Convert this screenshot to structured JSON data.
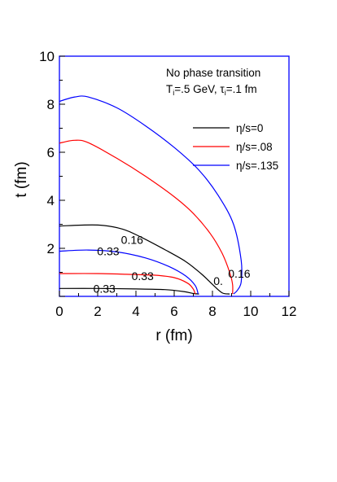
{
  "chart_data": {
    "type": "line",
    "title": "",
    "xlabel": "r (fm)",
    "ylabel": "t (fm)",
    "xlim": [
      0,
      12
    ],
    "ylim": [
      0,
      10
    ],
    "xticks": [
      "0",
      "2",
      "4",
      "6",
      "8",
      "10",
      "12"
    ],
    "yticks": [
      "2",
      "4",
      "6",
      "8",
      "10"
    ],
    "grid": false,
    "legend_placement": "right",
    "annotation": {
      "line1": "No phase transition",
      "line2": {
        "T": "T",
        "T_sub": "i",
        "T_val": "=.5 GeV, ",
        "tau": "τ",
        "tau_sub": "i",
        "tau_val": "=.1 fm"
      }
    },
    "series": [
      {
        "name": "η/s=0",
        "color": "#000000",
        "contours": [
          {
            "label": "0.16",
            "points": [
              [
                0,
                2.93
              ],
              [
                2,
                2.97
              ],
              [
                3.3,
                2.8
              ],
              [
                4.3,
                2.45
              ],
              [
                5.5,
                1.95
              ],
              [
                6.6,
                1.45
              ],
              [
                7.4,
                0.95
              ],
              [
                8.0,
                0.5
              ],
              [
                8.5,
                0.15
              ],
              [
                8.9,
                0.1
              ]
            ]
          },
          {
            "label": "0.33",
            "points": [
              [
                0,
                0.33
              ],
              [
                2,
                0.33
              ],
              [
                4,
                0.31
              ],
              [
                5.5,
                0.28
              ],
              [
                6.5,
                0.2
              ],
              [
                7.0,
                0.12
              ],
              [
                7.3,
                0.1
              ]
            ]
          }
        ]
      },
      {
        "name": "η/s=.08",
        "color": "#ff0000",
        "contours": [
          {
            "label": "",
            "points": [
              [
                0,
                6.38
              ],
              [
                0.8,
                6.5
              ],
              [
                1.5,
                6.4
              ],
              [
                3,
                5.75
              ],
              [
                4.5,
                5.0
              ],
              [
                6,
                4.15
              ],
              [
                7,
                3.45
              ],
              [
                7.9,
                2.6
              ],
              [
                8.5,
                1.8
              ],
              [
                8.9,
                1.0
              ],
              [
                9.05,
                0.5
              ],
              [
                9.05,
                0.1
              ]
            ]
          },
          {
            "label": "0.33",
            "points": [
              [
                0,
                0.95
              ],
              [
                2,
                0.95
              ],
              [
                3.5,
                0.92
              ],
              [
                5,
                0.88
              ],
              [
                6,
                0.78
              ],
              [
                6.7,
                0.55
              ],
              [
                7.0,
                0.3
              ],
              [
                7.1,
                0.1
              ]
            ]
          }
        ]
      },
      {
        "name": "η/s=.135",
        "color": "#0000ff",
        "contours": [
          {
            "label": "0.16",
            "points": [
              [
                0,
                8.12
              ],
              [
                0.8,
                8.3
              ],
              [
                1.5,
                8.3
              ],
              [
                3,
                7.85
              ],
              [
                4.5,
                7.1
              ],
              [
                6,
                6.2
              ],
              [
                7.3,
                5.25
              ],
              [
                8.3,
                4.2
              ],
              [
                9.1,
                3.0
              ],
              [
                9.5,
                1.5
              ],
              [
                9.5,
                0.6
              ],
              [
                9.3,
                0.25
              ],
              [
                9.1,
                0.1
              ]
            ]
          },
          {
            "label": "0.33",
            "points": [
              [
                0,
                1.88
              ],
              [
                1.5,
                1.93
              ],
              [
                3,
                1.85
              ],
              [
                4.5,
                1.6
              ],
              [
                5.7,
                1.25
              ],
              [
                6.6,
                0.85
              ],
              [
                7.1,
                0.45
              ],
              [
                7.25,
                0.1
              ]
            ]
          }
        ]
      }
    ],
    "extra_labels": [
      {
        "text": "0.",
        "x": 8.55,
        "y": 0.65
      }
    ]
  }
}
